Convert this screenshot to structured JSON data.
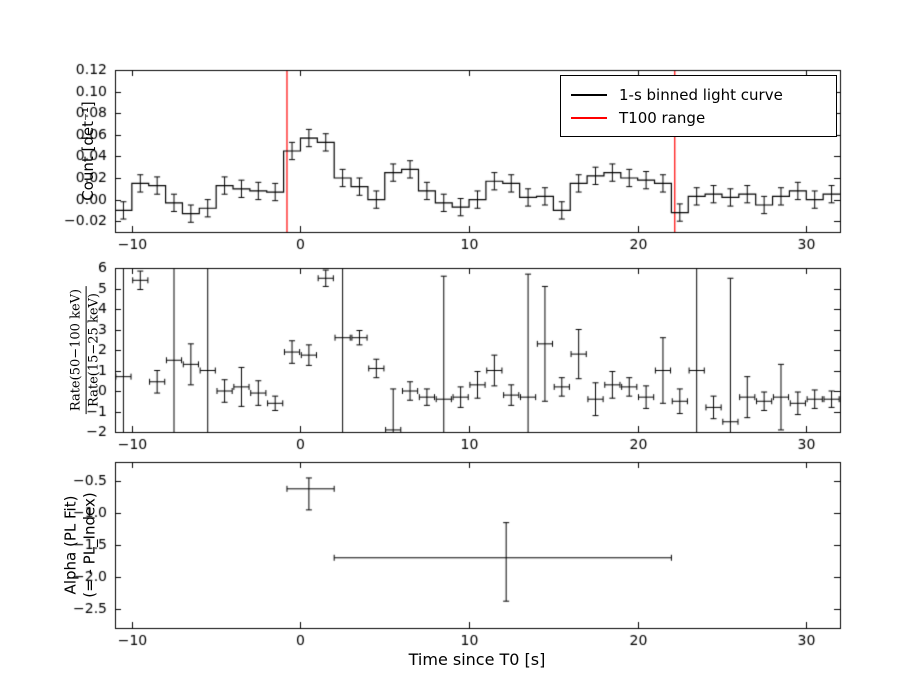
{
  "figure": {
    "background": "#ffffff",
    "frame_color": "#000000"
  },
  "chart_data": [
    {
      "type": "errorbar-step",
      "ylabel": "Count [det⁻¹]",
      "xlim": [
        -11,
        32
      ],
      "ylim": [
        -0.03,
        0.12
      ],
      "xticks": [
        -10,
        0,
        10,
        20,
        30
      ],
      "xtick_labels": [
        "−10",
        "0",
        "10",
        "20",
        "30"
      ],
      "yticks": [
        0.12,
        0.1,
        0.08,
        0.06,
        0.04,
        0.02,
        0.0,
        -0.02
      ],
      "ytick_labels": [
        "0.12",
        "0.10",
        "0.08",
        "0.06",
        "0.04",
        "0.02",
        "0.00",
        "−0.02"
      ],
      "x_start": -10.5,
      "x_step": 1,
      "bin_half_width": 0.5,
      "y": [
        -0.01,
        0.015,
        0.013,
        -0.003,
        -0.013,
        -0.008,
        0.013,
        0.01,
        0.008,
        0.007,
        0.045,
        0.057,
        0.053,
        0.02,
        0.012,
        0.0,
        0.025,
        0.028,
        0.008,
        -0.003,
        -0.007,
        0.0,
        0.017,
        0.015,
        0.002,
        0.003,
        -0.01,
        0.015,
        0.022,
        0.025,
        0.02,
        0.018,
        0.015,
        -0.012,
        0.003,
        0.005,
        0.002,
        0.005,
        -0.005,
        0.003,
        0.008,
        0.0,
        0.005
      ],
      "yerr": 0.008,
      "series_color": "#000000",
      "t100_lines": {
        "x": [
          -0.8,
          22.2
        ],
        "color": "#ff0000"
      },
      "legend": [
        {
          "label": "1-s binned light curve",
          "color": "#000000"
        },
        {
          "label": "T100 range",
          "color": "#ff0000"
        }
      ]
    },
    {
      "type": "errorbar-points",
      "ylabel_numerator": "Rate(50−100 keV)",
      "ylabel_denominator": "Rate(15−25 keV)",
      "xlim": [
        -11,
        32
      ],
      "ylim": [
        -2,
        6
      ],
      "xticks": [
        -10,
        0,
        10,
        20,
        30
      ],
      "xtick_labels": [
        "−10",
        "0",
        "10",
        "20",
        "30"
      ],
      "yticks": [
        6,
        5,
        4,
        3,
        2,
        1,
        0,
        -1,
        -2
      ],
      "ytick_labels": [
        "6",
        "5",
        "4",
        "3",
        "2",
        "1",
        "0",
        "−1",
        "−2"
      ],
      "x_start": -10.5,
      "x_step": 1,
      "xerr": 0.45,
      "y": [
        0.7,
        5.4,
        0.45,
        1.5,
        1.3,
        1.0,
        0.0,
        0.2,
        -0.1,
        -0.6,
        1.9,
        1.75,
        5.5,
        2.6,
        2.6,
        1.1,
        -1.9,
        0.0,
        -0.3,
        -0.4,
        -0.3,
        0.3,
        1.0,
        -0.2,
        -0.3,
        2.3,
        0.2,
        1.8,
        -0.4,
        0.3,
        0.2,
        -0.3,
        1.0,
        -0.5,
        1.0,
        -0.8,
        -1.5,
        -0.3,
        -0.5,
        -0.3,
        -0.6,
        -0.4,
        -0.4
      ],
      "yerr": [
        6,
        0.45,
        0.55,
        8,
        1.0,
        8,
        0.55,
        0.95,
        0.6,
        0.35,
        0.55,
        0.5,
        0.4,
        7,
        0.35,
        0.45,
        2.0,
        0.45,
        0.4,
        6,
        0.5,
        0.65,
        0.75,
        0.5,
        6,
        2.8,
        0.45,
        1.2,
        0.8,
        0.65,
        0.45,
        0.55,
        1.6,
        0.6,
        8,
        0.55,
        7,
        1.0,
        0.45,
        1.6,
        0.55,
        0.45,
        0.4
      ],
      "series_color": "#000000"
    },
    {
      "type": "errorbar-xy",
      "ylabel_line1": "Alpha (PL Fit)",
      "ylabel_line2": "(= - PL_Index)",
      "xlabel": "Time since T0 [s]",
      "xlim": [
        -11,
        32
      ],
      "ylim": [
        -2.8,
        -0.2
      ],
      "xticks": [
        -10,
        0,
        10,
        20,
        30
      ],
      "xtick_labels": [
        "−10",
        "0",
        "10",
        "20",
        "30"
      ],
      "yticks": [
        -0.5,
        -1.0,
        -1.5,
        -2.0,
        -2.5
      ],
      "ytick_labels": [
        "−0.5",
        "−1.0",
        "−1.5",
        "−2.0",
        "−2.5"
      ],
      "points": [
        {
          "x": 0.5,
          "xerr_minus": 1.3,
          "xerr_plus": 1.5,
          "y": -0.62,
          "yerr_plus": 0.17,
          "yerr_minus": 0.33
        },
        {
          "x": 12.2,
          "xerr_minus": 10.2,
          "xerr_plus": 9.8,
          "y": -1.7,
          "yerr_plus": 0.55,
          "yerr_minus": 0.68
        }
      ],
      "series_color": "#000000"
    }
  ]
}
